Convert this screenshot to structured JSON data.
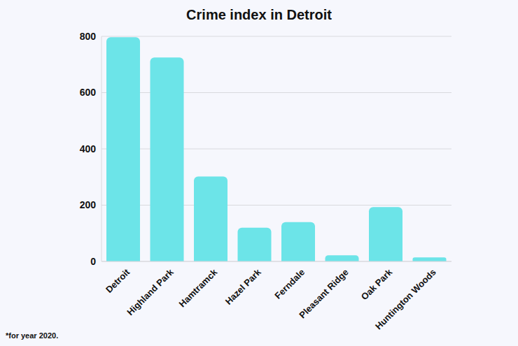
{
  "chart_data": {
    "type": "bar",
    "title": "Crime index in Detroit",
    "categories": [
      "Detroit",
      "Highland Park",
      "Hamtramck",
      "Hazel Park",
      "Ferndale",
      "Pleasant Ridge",
      "Oak Park",
      "Huntington Woods"
    ],
    "values": [
      797,
      725,
      302,
      120,
      140,
      22,
      193,
      14
    ],
    "color": "#6ce4e8",
    "ylim": [
      0,
      800
    ],
    "yticks": [
      0,
      200,
      400,
      600,
      800
    ],
    "grid": true,
    "annotations": [
      "*for year 2020."
    ]
  }
}
